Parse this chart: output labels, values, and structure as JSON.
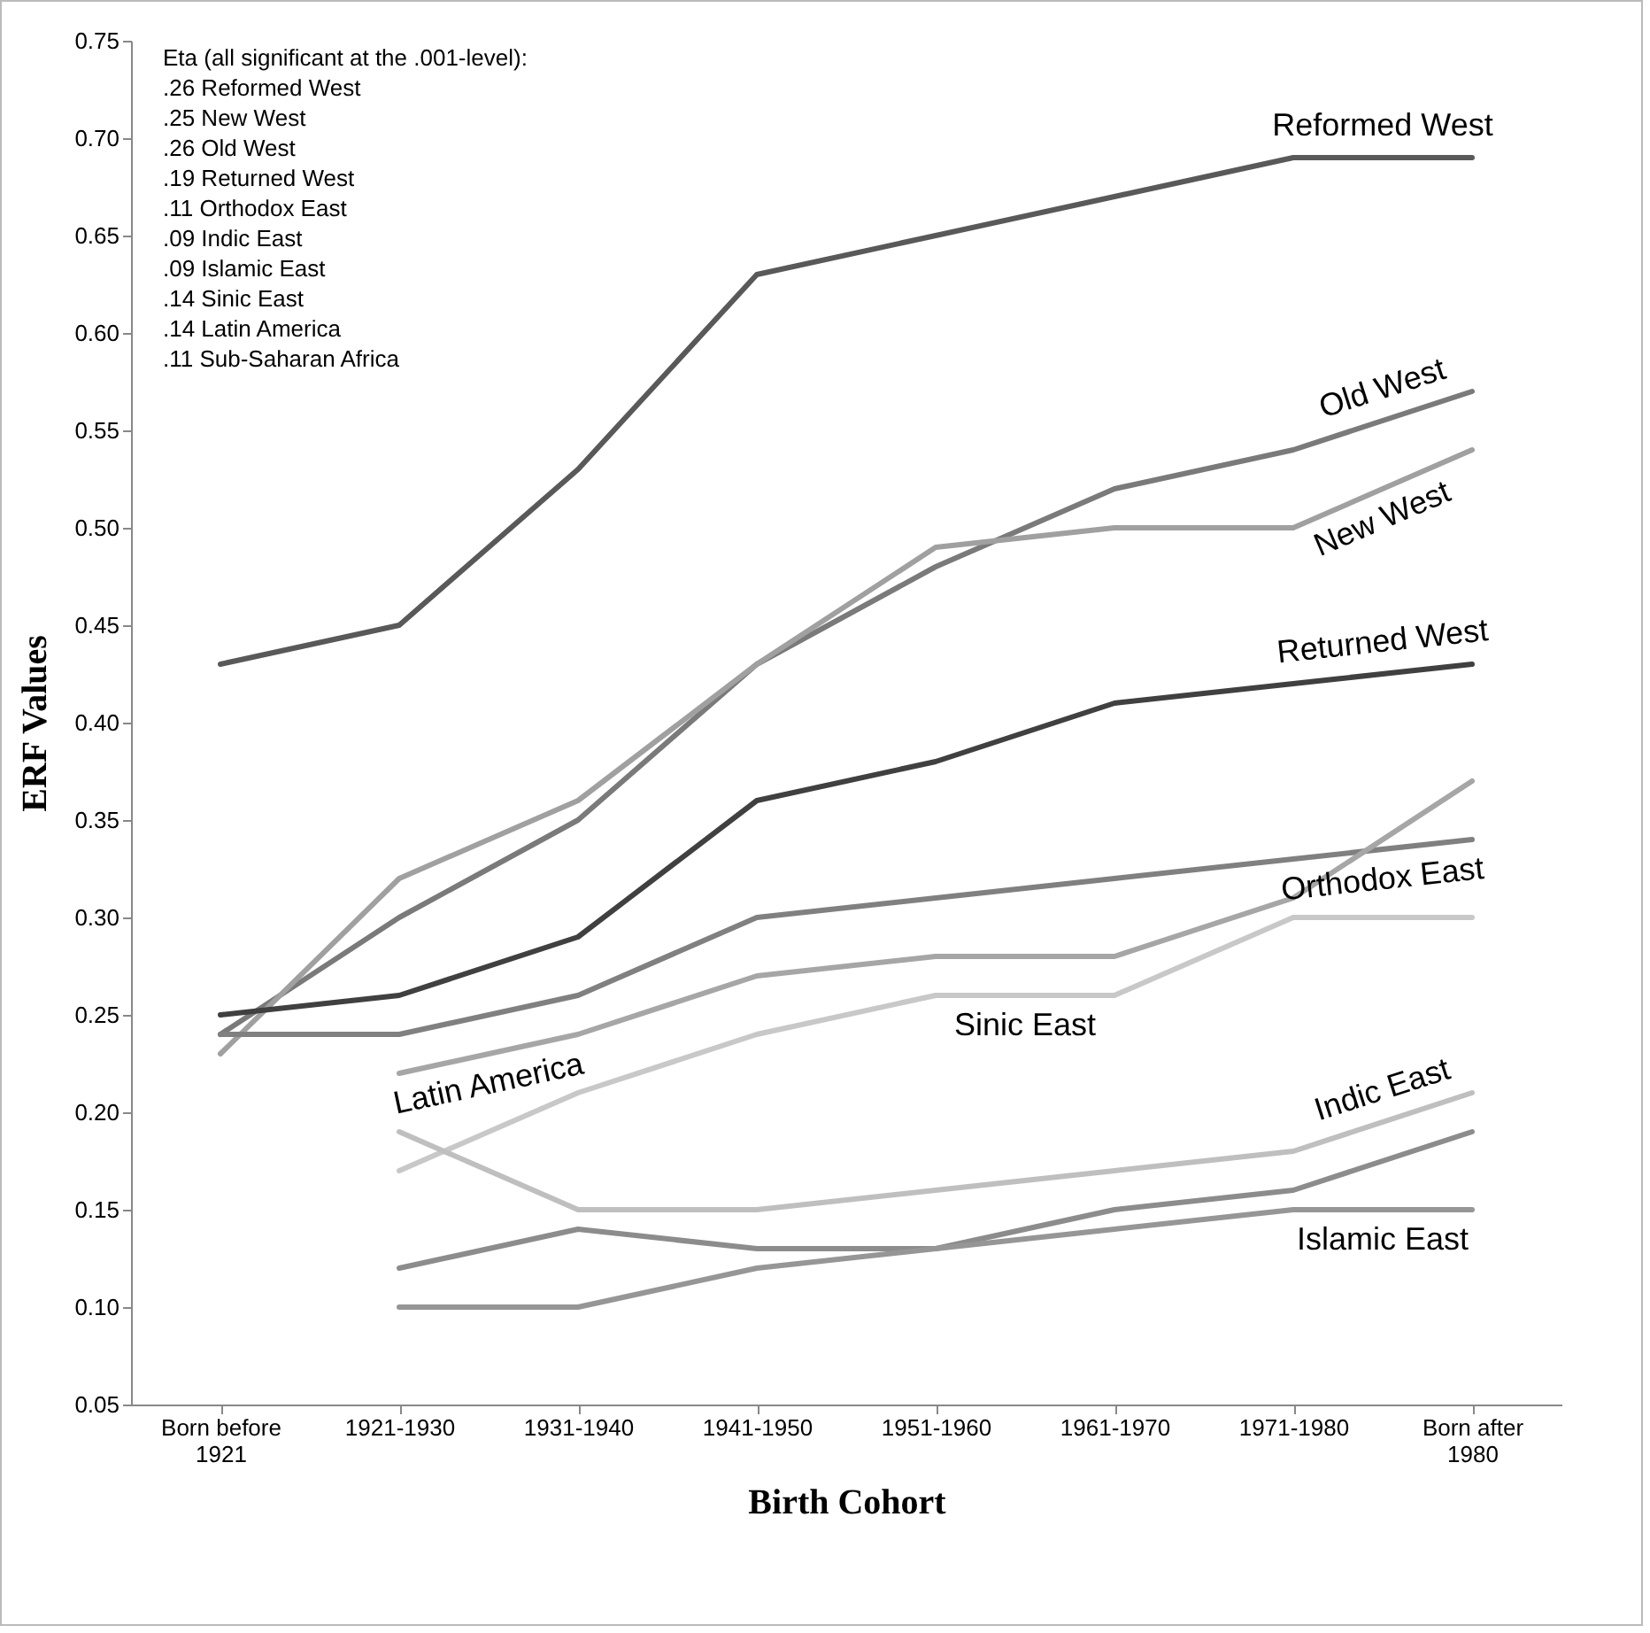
{
  "chart_data": {
    "type": "line",
    "xlabel": "Birth Cohort",
    "ylabel": "ERF Values",
    "categories": [
      "Born before 1921",
      "1921-1930",
      "1931-1940",
      "1941-1950",
      "1951-1960",
      "1961-1970",
      "1971-1980",
      "Born after 1980"
    ],
    "ylim": [
      0.05,
      0.75
    ],
    "yticks": [
      {
        "value": 0.05,
        "label": "0.05"
      },
      {
        "value": 0.1,
        "label": "0.10"
      },
      {
        "value": 0.15,
        "label": "0.15"
      },
      {
        "value": 0.2,
        "label": "0.20"
      },
      {
        "value": 0.25,
        "label": "0.25"
      },
      {
        "value": 0.3,
        "label": "0.30"
      },
      {
        "value": 0.35,
        "label": "0.35"
      },
      {
        "value": 0.4,
        "label": "0.40"
      },
      {
        "value": 0.45,
        "label": "0.45"
      },
      {
        "value": 0.5,
        "label": "0.50"
      },
      {
        "value": 0.55,
        "label": "0.55"
      },
      {
        "value": 0.6,
        "label": "0.60"
      },
      {
        "value": 0.65,
        "label": "0.65"
      },
      {
        "value": 0.7,
        "label": "0.70"
      },
      {
        "value": 0.75,
        "label": "0.75"
      }
    ],
    "grid": false,
    "legend": false,
    "marker": "none",
    "line_style": "solid",
    "series": [
      {
        "name": "Reformed West",
        "color": "#595959",
        "values": [
          0.43,
          0.45,
          0.53,
          0.63,
          0.65,
          0.67,
          0.69,
          0.69
        ]
      },
      {
        "name": "Old West",
        "color": "#7a7a7a",
        "values": [
          0.24,
          0.3,
          0.35,
          0.43,
          0.48,
          0.52,
          0.54,
          0.57
        ]
      },
      {
        "name": "New West",
        "color": "#a0a0a0",
        "values": [
          0.23,
          0.32,
          0.36,
          0.43,
          0.49,
          0.5,
          0.5,
          0.54
        ]
      },
      {
        "name": "Returned West",
        "color": "#404040",
        "values": [
          0.25,
          0.26,
          0.29,
          0.36,
          0.38,
          0.41,
          0.42,
          0.43
        ]
      },
      {
        "name": "Orthodox East",
        "color": "#808080",
        "values": [
          0.24,
          0.24,
          0.26,
          0.3,
          0.31,
          0.32,
          0.33,
          0.34
        ]
      },
      {
        "name": "Latin America",
        "color": "#a6a6a6",
        "values": [
          null,
          0.22,
          0.24,
          0.27,
          0.28,
          0.28,
          0.31,
          0.37
        ]
      },
      {
        "name": "Sinic East",
        "color": "#c8c8c8",
        "values": [
          null,
          0.17,
          0.21,
          0.24,
          0.26,
          0.26,
          0.3,
          0.3
        ]
      },
      {
        "name": "Indic East",
        "color": "#bfbfbf",
        "values": [
          null,
          0.19,
          0.15,
          0.15,
          0.16,
          0.17,
          0.18,
          0.21
        ]
      },
      {
        "color": "#8c8c8c",
        "values": [
          null,
          0.12,
          0.14,
          0.13,
          0.13,
          0.15,
          0.16,
          0.19
        ]
      },
      {
        "name": "Islamic East",
        "color": "#969696",
        "values": [
          null,
          0.1,
          0.1,
          0.12,
          0.13,
          0.14,
          0.15,
          0.15
        ]
      }
    ],
    "annotations": [
      "Eta (all significant at the .001-level):",
      ".26 Reformed West",
      ".25 New West",
      ".26 Old West",
      ".19 Returned West",
      ".11 Orthodox East",
      ".09 Indic East",
      ".09 Islamic East",
      ".14 Sinic East",
      ".14 Latin America",
      ".11 Sub-Saharan Africa"
    ]
  }
}
